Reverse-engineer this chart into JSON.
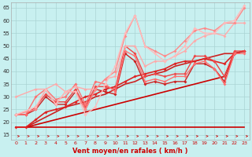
{
  "xlabel": "Vent moyen/en rafales ( km/h )",
  "background_color": "#c8f0f0",
  "grid_color": "#aad4d4",
  "xlim": [
    -0.5,
    23.5
  ],
  "ylim": [
    13,
    67
  ],
  "yticks": [
    15,
    20,
    25,
    30,
    35,
    40,
    45,
    50,
    55,
    60,
    65
  ],
  "xticks": [
    0,
    1,
    2,
    3,
    4,
    5,
    6,
    7,
    8,
    9,
    10,
    11,
    12,
    13,
    14,
    15,
    16,
    17,
    18,
    19,
    20,
    21,
    22,
    23
  ],
  "series": [
    {
      "x": [
        0,
        1,
        2,
        3,
        4,
        5,
        6,
        7,
        8,
        9,
        10,
        11,
        12,
        13,
        14,
        15,
        16,
        17,
        18,
        19,
        20,
        21,
        22,
        23
      ],
      "y": [
        18,
        18,
        18,
        18,
        18,
        18,
        18,
        18,
        18,
        18,
        18,
        18,
        18,
        18,
        18,
        18,
        18,
        18,
        18,
        18,
        18,
        18,
        18,
        18
      ],
      "color": "#cc0000",
      "lw": 1.2,
      "marker": null
    },
    {
      "x": [
        0,
        1,
        2,
        3,
        4,
        5,
        6,
        7,
        8,
        9,
        10,
        11,
        12,
        13,
        14,
        15,
        16,
        17,
        18,
        19,
        20,
        21,
        22,
        23
      ],
      "y": [
        18,
        18,
        19,
        20,
        21,
        22,
        23,
        24,
        25,
        26,
        27,
        28,
        29,
        30,
        31,
        32,
        33,
        34,
        35,
        36,
        37,
        38,
        47,
        48
      ],
      "color": "#cc0000",
      "lw": 1.2,
      "marker": null
    },
    {
      "x": [
        0,
        1,
        2,
        3,
        4,
        5,
        6,
        7,
        8,
        9,
        10,
        11,
        12,
        13,
        14,
        15,
        16,
        17,
        18,
        19,
        20,
        21,
        22,
        23
      ],
      "y": [
        18,
        18,
        20,
        22,
        24,
        26,
        27,
        28,
        30,
        31,
        33,
        35,
        36,
        38,
        39,
        40,
        42,
        43,
        44,
        45,
        46,
        47,
        47,
        48
      ],
      "color": "#cc2222",
      "lw": 1.2,
      "marker": null
    },
    {
      "x": [
        0,
        1,
        2,
        3,
        4,
        5,
        6,
        7,
        8,
        9,
        10,
        11,
        12,
        13,
        14,
        15,
        16,
        17,
        18,
        19,
        20,
        21,
        22,
        23
      ],
      "y": [
        18,
        18,
        21,
        24,
        25,
        26,
        28,
        30,
        31,
        33,
        34,
        36,
        38,
        39,
        40,
        41,
        43,
        44,
        44,
        45,
        44,
        43,
        47,
        48
      ],
      "color": "#dd2222",
      "lw": 1.2,
      "marker": "D",
      "ms": 2.0
    },
    {
      "x": [
        0,
        1,
        2,
        3,
        4,
        5,
        6,
        7,
        8,
        9,
        10,
        11,
        12,
        13,
        14,
        15,
        16,
        17,
        18,
        19,
        20,
        21,
        22,
        23
      ],
      "y": [
        23,
        23,
        25,
        30,
        27,
        27,
        32,
        25,
        33,
        32,
        31,
        47,
        44,
        35,
        36,
        35,
        36,
        36,
        43,
        43,
        41,
        36,
        47,
        48
      ],
      "color": "#cc2222",
      "lw": 1.0,
      "marker": "D",
      "ms": 2.0
    },
    {
      "x": [
        0,
        1,
        2,
        3,
        4,
        5,
        6,
        7,
        8,
        9,
        10,
        11,
        12,
        13,
        14,
        15,
        16,
        17,
        18,
        19,
        20,
        21,
        22,
        23
      ],
      "y": [
        23,
        23,
        26,
        31,
        28,
        28,
        33,
        26,
        34,
        34,
        33,
        50,
        47,
        38,
        39,
        38,
        39,
        39,
        46,
        46,
        44,
        38,
        48,
        48
      ],
      "color": "#ee4444",
      "lw": 1.0,
      "marker": "D",
      "ms": 2.0
    },
    {
      "x": [
        0,
        1,
        2,
        3,
        4,
        5,
        6,
        7,
        8,
        9,
        10,
        11,
        12,
        13,
        14,
        15,
        16,
        17,
        18,
        19,
        20,
        21,
        22,
        23
      ],
      "y": [
        23,
        23,
        30,
        33,
        29,
        30,
        35,
        27,
        36,
        35,
        32,
        48,
        46,
        36,
        37,
        36,
        38,
        38,
        43,
        44,
        41,
        35,
        47,
        47
      ],
      "color": "#ff7070",
      "lw": 1.0,
      "marker": "D",
      "ms": 2.0
    },
    {
      "x": [
        0,
        2,
        3,
        4,
        5,
        6,
        7,
        8,
        9,
        10,
        11,
        12,
        13,
        14,
        15,
        16,
        17,
        18,
        19,
        20,
        21,
        22,
        23
      ],
      "y": [
        30,
        33,
        33,
        35,
        32,
        34,
        33,
        33,
        37,
        38,
        50,
        50,
        42,
        44,
        44,
        46,
        48,
        52,
        54,
        55,
        54,
        59,
        59
      ],
      "color": "#ffaaaa",
      "lw": 1.0,
      "marker": "D",
      "ms": 2.0
    },
    {
      "x": [
        0,
        2,
        3,
        4,
        5,
        6,
        7,
        8,
        9,
        10,
        11,
        12,
        13,
        14,
        15,
        16,
        17,
        18,
        19,
        20,
        21,
        22,
        23
      ],
      "y": [
        23,
        25,
        33,
        27,
        32,
        32,
        25,
        33,
        37,
        40,
        54,
        62,
        50,
        48,
        46,
        48,
        52,
        56,
        57,
        56,
        59,
        59,
        65
      ],
      "color": "#ff8888",
      "lw": 1.0,
      "marker": "D",
      "ms": 2.0
    },
    {
      "x": [
        0,
        2,
        3,
        4,
        5,
        6,
        7,
        8,
        9,
        10,
        11,
        12,
        13,
        14,
        15,
        16,
        17,
        18,
        19,
        20,
        21,
        22,
        23
      ],
      "y": [
        23,
        26,
        33,
        27,
        32,
        32,
        23,
        26,
        35,
        42,
        55,
        62,
        50,
        47,
        44,
        46,
        50,
        57,
        55,
        55,
        59,
        60,
        66
      ],
      "color": "#ffbbbb",
      "lw": 1.0,
      "marker": "D",
      "ms": 2.0
    }
  ]
}
